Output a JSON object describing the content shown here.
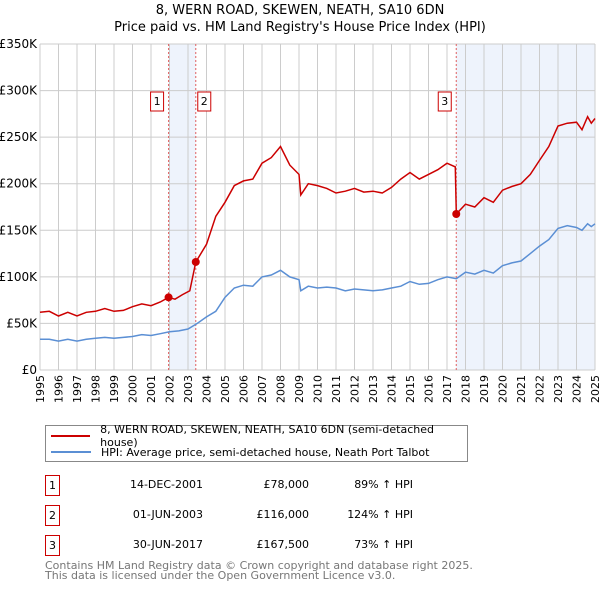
{
  "chart_data": {
    "type": "line",
    "title": "8, WERN ROAD, SKEWEN, NEATH, SA10 6DN",
    "subtitle": "Price paid vs. HM Land Registry's House Price Index (HPI)",
    "xlim": [
      1995,
      2025
    ],
    "ylim": [
      0,
      350000
    ],
    "x_ticks": [
      "1995",
      "1996",
      "1997",
      "1998",
      "1999",
      "2000",
      "2001",
      "2002",
      "2003",
      "2004",
      "2005",
      "2006",
      "2007",
      "2008",
      "2009",
      "2010",
      "2011",
      "2012",
      "2013",
      "2014",
      "2015",
      "2016",
      "2017",
      "2018",
      "2019",
      "2020",
      "2021",
      "2022",
      "2023",
      "2024",
      "2025"
    ],
    "y_ticks": [
      {
        "v": 0,
        "label": "£0"
      },
      {
        "v": 50000,
        "label": "£50K"
      },
      {
        "v": 100000,
        "label": "£100K"
      },
      {
        "v": 150000,
        "label": "£150K"
      },
      {
        "v": 200000,
        "label": "£200K"
      },
      {
        "v": 250000,
        "label": "£250K"
      },
      {
        "v": 300000,
        "label": "£300K"
      },
      {
        "v": 350000,
        "label": "£350K"
      }
    ],
    "grid": true,
    "series": [
      {
        "name": "8, WERN ROAD, SKEWEN, NEATH, SA10 6DN (semi-detached house)",
        "color": "#cc0000",
        "x": [
          1995,
          1995.5,
          1996,
          1996.5,
          1997,
          1997.5,
          1998,
          1998.5,
          1999,
          1999.5,
          2000,
          2000.5,
          2001,
          2001.5,
          2001.95,
          2002.3,
          2002.7,
          2003.1,
          2003.42,
          2004,
          2004.5,
          2005,
          2005.5,
          2006,
          2006.5,
          2007,
          2007.5,
          2008,
          2008.5,
          2009,
          2009.1,
          2009.5,
          2010,
          2010.5,
          2011,
          2011.5,
          2012,
          2012.5,
          2013,
          2013.5,
          2014,
          2014.5,
          2015,
          2015.5,
          2016,
          2016.5,
          2017,
          2017.45,
          2017.5,
          2018,
          2018.5,
          2019,
          2019.5,
          2020,
          2020.5,
          2021,
          2021.5,
          2022,
          2022.5,
          2023,
          2023.5,
          2024,
          2024.3,
          2024.6,
          2024.8,
          2025
        ],
        "y": [
          62000,
          63000,
          58000,
          62000,
          58000,
          62000,
          63000,
          66000,
          63000,
          64000,
          68000,
          71000,
          69000,
          73000,
          78000,
          76000,
          81000,
          85000,
          116000,
          135000,
          165000,
          180000,
          198000,
          203000,
          205000,
          222000,
          228000,
          240000,
          220000,
          210000,
          188000,
          200000,
          198000,
          195000,
          190000,
          192000,
          195000,
          191000,
          192000,
          190000,
          196000,
          205000,
          212000,
          205000,
          210000,
          215000,
          222000,
          218000,
          167500,
          178000,
          175000,
          185000,
          180000,
          193000,
          197000,
          200000,
          210000,
          225000,
          240000,
          262000,
          265000,
          266000,
          258000,
          272000,
          265000,
          270000
        ]
      },
      {
        "name": "HPI: Average price, semi-detached house, Neath Port Talbot",
        "color": "#5b8fd4",
        "x": [
          1995,
          1995.5,
          1996,
          1996.5,
          1997,
          1997.5,
          1998,
          1998.5,
          1999,
          1999.5,
          2000,
          2000.5,
          2001,
          2001.5,
          2002,
          2002.5,
          2003,
          2003.5,
          2004,
          2004.5,
          2005,
          2005.5,
          2006,
          2006.5,
          2007,
          2007.5,
          2008,
          2008.5,
          2009,
          2009.1,
          2009.5,
          2010,
          2010.5,
          2011,
          2011.5,
          2012,
          2012.5,
          2013,
          2013.5,
          2014,
          2014.5,
          2015,
          2015.5,
          2016,
          2016.5,
          2017,
          2017.5,
          2018,
          2018.5,
          2019,
          2019.5,
          2020,
          2020.5,
          2021,
          2021.5,
          2022,
          2022.5,
          2023,
          2023.5,
          2024,
          2024.3,
          2024.6,
          2024.8,
          2025
        ],
        "y": [
          33000,
          33000,
          31000,
          33000,
          31000,
          33000,
          34000,
          35000,
          34000,
          35000,
          36000,
          38000,
          37000,
          39000,
          41000,
          42000,
          44000,
          50000,
          57000,
          63000,
          78000,
          88000,
          91000,
          90000,
          100000,
          102000,
          107000,
          100000,
          97000,
          85000,
          90000,
          88000,
          89000,
          88000,
          85000,
          87000,
          86000,
          85000,
          86000,
          88000,
          90000,
          95000,
          92000,
          93000,
          97000,
          100000,
          98000,
          105000,
          103000,
          107000,
          104000,
          112000,
          115000,
          117000,
          125000,
          133000,
          140000,
          152000,
          155000,
          153000,
          150000,
          157000,
          154000,
          157000
        ]
      }
    ],
    "sales": [
      {
        "n": "1",
        "x": 2001.95,
        "y": 78000,
        "date": "14-DEC-2001",
        "price": "£78,000",
        "hpi": "89% ↑ HPI"
      },
      {
        "n": "2",
        "x": 2003.42,
        "y": 116000,
        "date": "01-JUN-2003",
        "price": "£116,000",
        "hpi": "124% ↑ HPI"
      },
      {
        "n": "3",
        "x": 2017.5,
        "y": 167500,
        "date": "30-JUN-2017",
        "price": "£167,500",
        "hpi": "73% ↑ HPI"
      }
    ],
    "legend_placement": "below"
  },
  "footer": {
    "line1": "Contains HM Land Registry data © Crown copyright and database right 2025.",
    "line2": "This data is licensed under the Open Government Licence v3.0."
  }
}
